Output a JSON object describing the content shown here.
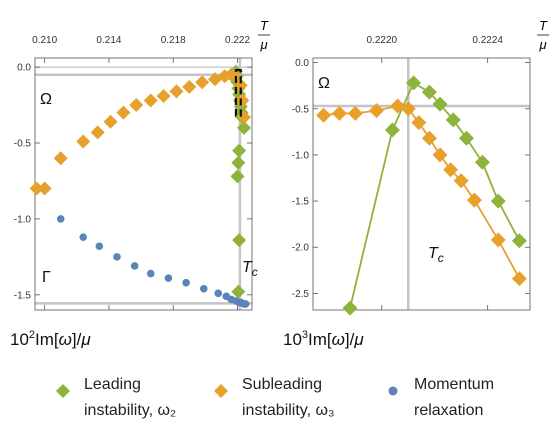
{
  "chart_data": [
    {
      "type": "scatter",
      "panel": "left",
      "xlabel_top": "T/μ",
      "ylabel": "10²Im[ω]/μ",
      "xlim": [
        0.2094,
        0.2229
      ],
      "ylim": [
        -1.6,
        0.06
      ],
      "x_ticks": [
        0.21,
        0.214,
        0.218,
        0.222
      ],
      "x_tick_labels": [
        "0.210",
        "0.214",
        "0.218",
        "0.222"
      ],
      "y_ticks": [
        0.0,
        -0.5,
        -1.0,
        -1.5
      ],
      "y_tick_labels": [
        "0.0",
        "-0.5",
        "-1.0",
        "-1.5"
      ],
      "annotations": {
        "omega": "Ω",
        "gamma": "Γ",
        "tc": "T",
        "tc_sub": "c"
      },
      "reference_lines": {
        "tc": 0.22215,
        "omega": -0.05,
        "gamma": -1.556
      },
      "zoom_box": {
        "x": [
          0.2219,
          0.2222
        ],
        "y": [
          -0.32,
          -0.02
        ]
      },
      "series": [
        {
          "name": "Leading instability, ω₂",
          "color": "#8db33a",
          "marker": "diamond",
          "x": [
            0.2219,
            0.22195,
            0.222,
            0.22205,
            0.2221,
            0.22215,
            0.2222,
            0.22225,
            0.2223,
            0.2224,
            0.2221,
            0.22205,
            0.222,
            0.2221,
            0.22205
          ],
          "y": [
            -0.03,
            -0.06,
            -0.1,
            -0.14,
            -0.18,
            -0.22,
            -0.26,
            -0.3,
            -0.33,
            -0.4,
            -0.55,
            -0.63,
            -0.72,
            -1.14,
            -1.48
          ]
        },
        {
          "name": "Subleading instability, ω₃",
          "color": "#e8a02c",
          "marker": "diamond",
          "x": [
            0.2095,
            0.21,
            0.211,
            0.2124,
            0.2133,
            0.2141,
            0.2149,
            0.2157,
            0.2166,
            0.2174,
            0.2182,
            0.219,
            0.2198,
            0.2206,
            0.2212,
            0.2216,
            0.2218,
            0.2222,
            0.2223,
            0.2224
          ],
          "y": [
            -0.8,
            -0.8,
            -0.6,
            -0.49,
            -0.43,
            -0.36,
            -0.3,
            -0.25,
            -0.22,
            -0.19,
            -0.16,
            -0.13,
            -0.1,
            -0.08,
            -0.06,
            -0.05,
            -0.05,
            -0.12,
            -0.22,
            -0.33
          ]
        },
        {
          "name": "Momentum relaxation",
          "color": "#5b84b8",
          "marker": "circle",
          "x": [
            0.211,
            0.2124,
            0.2134,
            0.2145,
            0.2156,
            0.2166,
            0.2177,
            0.2188,
            0.2199,
            0.2208,
            0.2213,
            0.2216,
            0.2219,
            0.2221,
            0.2222,
            0.2223,
            0.2224,
            0.2225
          ],
          "y": [
            -1.0,
            -1.12,
            -1.18,
            -1.25,
            -1.31,
            -1.36,
            -1.39,
            -1.42,
            -1.46,
            -1.49,
            -1.51,
            -1.53,
            -1.54,
            -1.55,
            -1.55,
            -1.555,
            -1.56,
            -1.56
          ]
        }
      ]
    },
    {
      "type": "line",
      "panel": "right",
      "xlabel_top": "T/μ",
      "ylabel": "10³Im[ω]/μ",
      "xlim": [
        0.22174,
        0.22256
      ],
      "ylim": [
        -2.68,
        0.05
      ],
      "x_ticks": [
        0.222,
        0.2224
      ],
      "x_tick_labels": [
        "0.2220",
        "0.2224"
      ],
      "y_ticks": [
        0.0,
        -0.5,
        -1.0,
        -1.5,
        -2.0,
        -2.5
      ],
      "y_tick_labels": [
        "0.0",
        "-0.5",
        "-1.0",
        "-1.5",
        "-2.0",
        "-2.5"
      ],
      "annotations": {
        "omega": "Ω",
        "tc": "T",
        "tc_sub": "c"
      },
      "reference_lines": {
        "tc": 0.2221,
        "omega": -0.47
      },
      "series": [
        {
          "name": "Leading instability, ω₂",
          "color": "#8db33a",
          "marker": "diamond",
          "x": [
            0.22188,
            0.22204,
            0.22212,
            0.22218,
            0.22222,
            0.22227,
            0.22232,
            0.22238,
            0.22244,
            0.22252
          ],
          "y": [
            -2.66,
            -0.73,
            -0.22,
            -0.32,
            -0.45,
            -0.62,
            -0.82,
            -1.08,
            -1.5,
            -1.93
          ]
        },
        {
          "name": "Subleading instability, ω₃",
          "color": "#e8a02c",
          "marker": "diamond",
          "x": [
            0.22178,
            0.22184,
            0.2219,
            0.22198,
            0.22206,
            0.2221,
            0.22214,
            0.22218,
            0.22222,
            0.22226,
            0.2223,
            0.22235,
            0.22244,
            0.22252
          ],
          "y": [
            -0.57,
            -0.55,
            -0.55,
            -0.52,
            -0.47,
            -0.5,
            -0.65,
            -0.82,
            -1.0,
            -1.16,
            -1.28,
            -1.49,
            -1.92,
            -2.34
          ]
        }
      ]
    }
  ],
  "legend": [
    {
      "label": "Leading\ninstability, ω₂",
      "color": "#8db33a",
      "marker": "diamond"
    },
    {
      "label": "Subleading\ninstability, ω₃",
      "color": "#e8a02c",
      "marker": "diamond"
    },
    {
      "label": "Momentum\nrelaxation",
      "color": "#5b84b8",
      "marker": "circle"
    }
  ],
  "colors": {
    "reference_line": "#c4c4c4",
    "zoom_box": "#111111"
  }
}
